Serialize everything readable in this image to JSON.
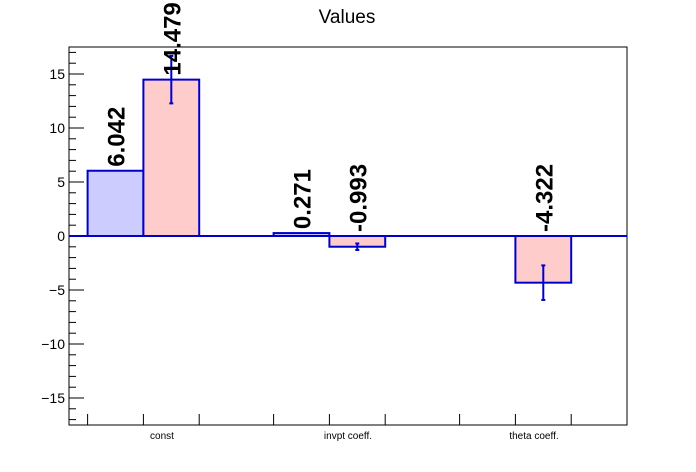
{
  "chart_data": {
    "type": "bar",
    "title": "Values",
    "xlabel": "",
    "ylabel": "",
    "categories": [
      "const",
      "invpt coeff.",
      "theta coeff."
    ],
    "series": [
      {
        "values": [
          6.042,
          0.271,
          null
        ],
        "errors": [
          null,
          null,
          null
        ],
        "data_labels": [
          "6.042",
          "0.271",
          null
        ],
        "color": "#ccccff",
        "edge_color": "#0000cc"
      },
      {
        "values": [
          14.479,
          -0.993,
          -4.322
        ],
        "errors": [
          2.2,
          0.3,
          1.6
        ],
        "data_labels": [
          "14.479",
          "-0.993",
          "-4.322"
        ],
        "color": "#ffcccc",
        "edge_color": "#0000cc"
      }
    ],
    "ylim": [
      -17.5,
      17.5
    ],
    "y_ticks": [
      -15,
      -10,
      -5,
      0,
      5,
      10,
      15
    ],
    "y_tick_labels": [
      "−15",
      "−10",
      "−5",
      "0",
      "5",
      "10",
      "15"
    ],
    "zero_line": true,
    "grid": false,
    "legend": "none"
  }
}
